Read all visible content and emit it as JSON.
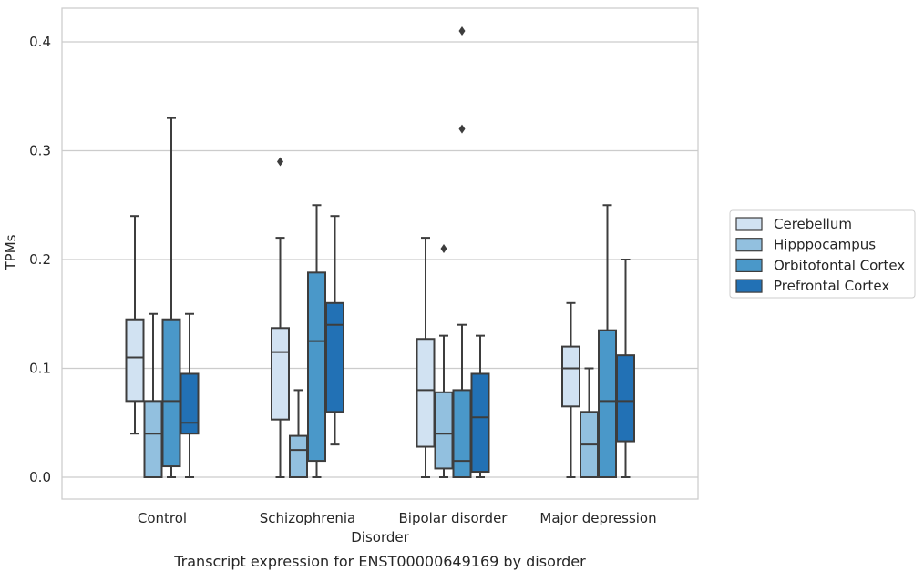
{
  "chart_data": {
    "type": "box",
    "title": "",
    "caption": "Transcript expression for ENST00000649169 by disorder",
    "xlabel": "Disorder",
    "ylabel": "TPMs",
    "ylim": [
      -0.02,
      0.43
    ],
    "yticks": [
      0.0,
      0.1,
      0.2,
      0.3,
      0.4
    ],
    "ytick_labels": [
      "0.0",
      "0.1",
      "0.2",
      "0.3",
      "0.4"
    ],
    "grid": "horizontal",
    "legend_position": "right",
    "categories": [
      "Control",
      "Schizophrenia",
      "Bipolar disorder",
      "Major depression"
    ],
    "series": [
      {
        "name": "Cerebellum",
        "color": "#d1e2f2",
        "boxes": [
          {
            "whisker_low": 0.04,
            "q1": 0.07,
            "median": 0.11,
            "q3": 0.145,
            "whisker_high": 0.24,
            "outliers": []
          },
          {
            "whisker_low": 0.0,
            "q1": 0.053,
            "median": 0.115,
            "q3": 0.137,
            "whisker_high": 0.22,
            "outliers": [
              0.29
            ]
          },
          {
            "whisker_low": 0.0,
            "q1": 0.028,
            "median": 0.08,
            "q3": 0.127,
            "whisker_high": 0.22,
            "outliers": []
          },
          {
            "whisker_low": 0.0,
            "q1": 0.065,
            "median": 0.1,
            "q3": 0.12,
            "whisker_high": 0.16,
            "outliers": []
          }
        ]
      },
      {
        "name": "Hipppocampus",
        "color": "#92c0df",
        "boxes": [
          {
            "whisker_low": 0.0,
            "q1": 0.0,
            "median": 0.04,
            "q3": 0.07,
            "whisker_high": 0.15,
            "outliers": []
          },
          {
            "whisker_low": 0.0,
            "q1": 0.0,
            "median": 0.025,
            "q3": 0.038,
            "whisker_high": 0.08,
            "outliers": []
          },
          {
            "whisker_low": 0.0,
            "q1": 0.008,
            "median": 0.04,
            "q3": 0.078,
            "whisker_high": 0.13,
            "outliers": [
              0.21
            ]
          },
          {
            "whisker_low": 0.0,
            "q1": 0.0,
            "median": 0.03,
            "q3": 0.06,
            "whisker_high": 0.1,
            "outliers": []
          }
        ]
      },
      {
        "name": "Orbitofontal Cortex",
        "color": "#4a98c9",
        "boxes": [
          {
            "whisker_low": 0.0,
            "q1": 0.01,
            "median": 0.07,
            "q3": 0.145,
            "whisker_high": 0.33,
            "outliers": []
          },
          {
            "whisker_low": 0.0,
            "q1": 0.015,
            "median": 0.125,
            "q3": 0.188,
            "whisker_high": 0.25,
            "outliers": []
          },
          {
            "whisker_low": 0.0,
            "q1": 0.0,
            "median": 0.015,
            "q3": 0.08,
            "whisker_high": 0.14,
            "outliers": [
              0.32,
              0.41
            ]
          },
          {
            "whisker_low": 0.0,
            "q1": 0.0,
            "median": 0.07,
            "q3": 0.135,
            "whisker_high": 0.25,
            "outliers": []
          }
        ]
      },
      {
        "name": "Prefrontal Cortex",
        "color": "#2271b5",
        "boxes": [
          {
            "whisker_low": 0.0,
            "q1": 0.04,
            "median": 0.05,
            "q3": 0.095,
            "whisker_high": 0.15,
            "outliers": []
          },
          {
            "whisker_low": 0.03,
            "q1": 0.06,
            "median": 0.14,
            "q3": 0.16,
            "whisker_high": 0.24,
            "outliers": []
          },
          {
            "whisker_low": 0.0,
            "q1": 0.005,
            "median": 0.055,
            "q3": 0.095,
            "whisker_high": 0.13,
            "outliers": []
          },
          {
            "whisker_low": 0.0,
            "q1": 0.033,
            "median": 0.07,
            "q3": 0.112,
            "whisker_high": 0.2,
            "outliers": []
          }
        ]
      }
    ]
  }
}
